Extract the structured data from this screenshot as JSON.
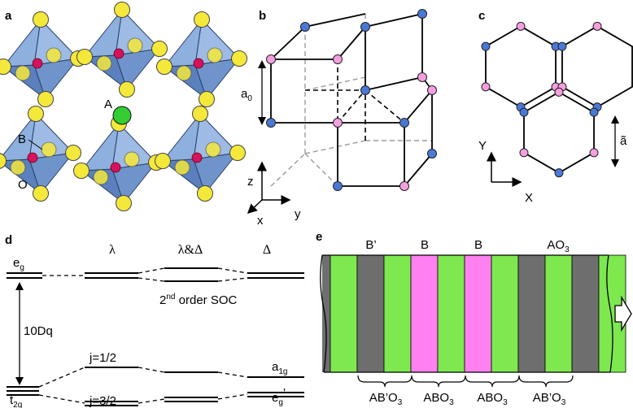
{
  "panels": {
    "a": {
      "label": "a",
      "sites": {
        "A": "A",
        "B": "B",
        "O": "O"
      }
    },
    "b": {
      "label": "b",
      "lattice_const": "a",
      "lattice_const_sub": "0",
      "axes": {
        "z": "z",
        "x": "x",
        "y": "y"
      }
    },
    "c": {
      "label": "c",
      "lattice_const": "ã",
      "axes": {
        "Y": "Y",
        "X": "X"
      }
    },
    "d": {
      "label": "d",
      "eg": "e",
      "eg_sub": "g",
      "t2g": "t",
      "t2g_sub": "2g",
      "col_lambda": "λ",
      "col_both": "λ&Δ",
      "col_delta": "Δ",
      "tenDq": "10Dq",
      "soc_pre": "2",
      "soc_sup": "nd",
      "soc_post": " order SOC",
      "j_half": "j=1/2",
      "j_three_half": "j=3/2",
      "a1g": "a",
      "a1g_sub": "1g",
      "eg_prime": "e",
      "eg_prime_sub": "g",
      "eg_prime_mark": "’"
    },
    "e": {
      "label": "e",
      "layer_labels": [
        "B’",
        "B",
        "B",
        "AO"
      ],
      "layer_label_subs": [
        "",
        "",
        "",
        "3"
      ],
      "unit_labels": [
        "AB’O",
        "ABO",
        "ABO",
        "AB’O"
      ],
      "unit_label_subs": [
        "3",
        "3",
        "3",
        "3"
      ],
      "stripes": [
        "green",
        "gray",
        "green",
        "magenta",
        "green",
        "magenta",
        "green",
        "gray",
        "green",
        "gray",
        "green"
      ]
    }
  },
  "colors": {
    "oxygen": "#f4e83a",
    "b_site": "#d6115f",
    "a_site": "#33cc33",
    "octahedron": "#7aa3d6",
    "blue_node": "#4a78d6",
    "pink_node": "#f59fe0",
    "stripe_green": "#7ee84f",
    "stripe_gray": "#6e6e6e",
    "stripe_magenta": "#ff80f0"
  }
}
